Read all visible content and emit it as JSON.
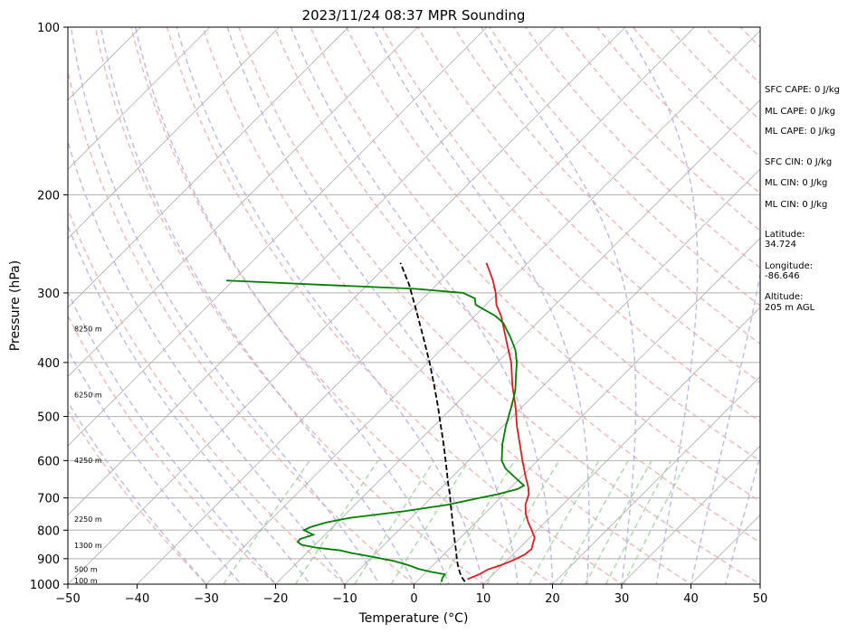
{
  "chart_data": {
    "type": "line",
    "title": "2023/11/24 08:37 MPR Sounding",
    "xlabel": "Temperature (°C)",
    "ylabel": "Pressure (hPa)",
    "xlim": [
      -50,
      50
    ],
    "ylim": [
      1000,
      100
    ],
    "y_scale": "log",
    "skew": true,
    "grid": true,
    "x_ticks": [
      -50,
      -40,
      -30,
      -20,
      -10,
      0,
      10,
      20,
      30,
      40,
      50
    ],
    "y_ticks": [
      1000,
      900,
      800,
      700,
      600,
      500,
      400,
      300,
      200,
      100
    ],
    "series": [
      {
        "color": "#e41a1c",
        "points": [
          [
            980,
            7.0
          ],
          [
            960,
            8.0
          ],
          [
            940,
            8.6
          ],
          [
            925,
            9.8
          ],
          [
            905,
            10.9
          ],
          [
            885,
            11.7
          ],
          [
            865,
            11.9
          ],
          [
            845,
            11.3
          ],
          [
            825,
            10.7
          ],
          [
            800,
            9.2
          ],
          [
            775,
            7.6
          ],
          [
            750,
            6.1
          ],
          [
            720,
            4.6
          ],
          [
            690,
            3.6
          ],
          [
            670,
            2.5
          ],
          [
            640,
            0.5
          ],
          [
            600,
            -2.2
          ],
          [
            560,
            -5.0
          ],
          [
            520,
            -8.0
          ],
          [
            480,
            -11.0
          ],
          [
            440,
            -14.5
          ],
          [
            420,
            -16.2
          ],
          [
            400,
            -18.0
          ],
          [
            380,
            -20.2
          ],
          [
            360,
            -22.5
          ],
          [
            345,
            -24.3
          ],
          [
            330,
            -26.2
          ],
          [
            315,
            -28.5
          ],
          [
            300,
            -30.3
          ],
          [
            285,
            -32.5
          ],
          [
            275,
            -34.2
          ],
          [
            265,
            -36.0
          ]
        ]
      },
      {
        "color": "#008000",
        "points": [
          [
            990,
            3.6
          ],
          [
            975,
            3.2
          ],
          [
            960,
            3.0
          ],
          [
            950,
            0.6
          ],
          [
            940,
            -1.4
          ],
          [
            925,
            -3.5
          ],
          [
            910,
            -6.0
          ],
          [
            895,
            -9.5
          ],
          [
            880,
            -13.4
          ],
          [
            870,
            -15.5
          ],
          [
            860,
            -19.3
          ],
          [
            850,
            -21.9
          ],
          [
            840,
            -22.9
          ],
          [
            830,
            -23.0
          ],
          [
            815,
            -21.7
          ],
          [
            800,
            -23.7
          ],
          [
            790,
            -23.2
          ],
          [
            775,
            -21.6
          ],
          [
            760,
            -18.8
          ],
          [
            740,
            -12.0
          ],
          [
            720,
            -6.6
          ],
          [
            700,
            -3.0
          ],
          [
            690,
            -1.0
          ],
          [
            675,
            1.2
          ],
          [
            665,
            1.6
          ],
          [
            640,
            -1.2
          ],
          [
            620,
            -3.5
          ],
          [
            600,
            -5.2
          ],
          [
            560,
            -7.5
          ],
          [
            520,
            -9.6
          ],
          [
            480,
            -11.6
          ],
          [
            450,
            -13.3
          ],
          [
            420,
            -15.6
          ],
          [
            400,
            -17.2
          ],
          [
            380,
            -19.2
          ],
          [
            360,
            -21.8
          ],
          [
            350,
            -23.3
          ],
          [
            340,
            -24.8
          ],
          [
            330,
            -27.0
          ],
          [
            320,
            -30.0
          ],
          [
            315,
            -31.5
          ],
          [
            307,
            -32.5
          ],
          [
            300,
            -35.0
          ],
          [
            295,
            -42.5
          ],
          [
            290,
            -57.0
          ],
          [
            285,
            -71.0
          ]
        ]
      },
      {
        "color": "#000000",
        "style": "dashed",
        "points": [
          [
            990,
            7.0
          ],
          [
            970,
            5.8
          ],
          [
            950,
            4.8
          ],
          [
            925,
            3.6
          ],
          [
            900,
            2.5
          ],
          [
            870,
            1.2
          ],
          [
            840,
            -0.2
          ],
          [
            810,
            -1.6
          ],
          [
            780,
            -3.1
          ],
          [
            750,
            -4.6
          ],
          [
            720,
            -6.2
          ],
          [
            690,
            -7.8
          ],
          [
            660,
            -9.6
          ],
          [
            630,
            -11.4
          ],
          [
            600,
            -13.3
          ],
          [
            560,
            -16.0
          ],
          [
            520,
            -19.0
          ],
          [
            480,
            -22.2
          ],
          [
            440,
            -25.8
          ],
          [
            400,
            -29.8
          ],
          [
            360,
            -34.4
          ],
          [
            320,
            -39.6
          ],
          [
            290,
            -44.0
          ],
          [
            265,
            -48.4
          ]
        ]
      }
    ],
    "height_labels": [
      {
        "text": "100 m",
        "pressure": 1000
      },
      {
        "text": "500 m",
        "pressure": 955
      },
      {
        "text": "1300 m",
        "pressure": 865
      },
      {
        "text": "2250 m",
        "pressure": 776
      },
      {
        "text": "4250 m",
        "pressure": 608
      },
      {
        "text": "6250 m",
        "pressure": 464
      },
      {
        "text": "8250 m",
        "pressure": 353
      }
    ],
    "side_text": [
      "SFC CAPE: 0 J/kg",
      "ML CAPE: 0 J/kg",
      "ML CAPE: 0 J/kg",
      "SFC CIN: 0 J/kg",
      "ML CIN: 0 J/kg",
      "ML CIN: 0 J/kg",
      "Latitude:",
      "34.724",
      "Longitude:",
      "-86.646",
      "Altitude:",
      "205 m AGL"
    ]
  }
}
